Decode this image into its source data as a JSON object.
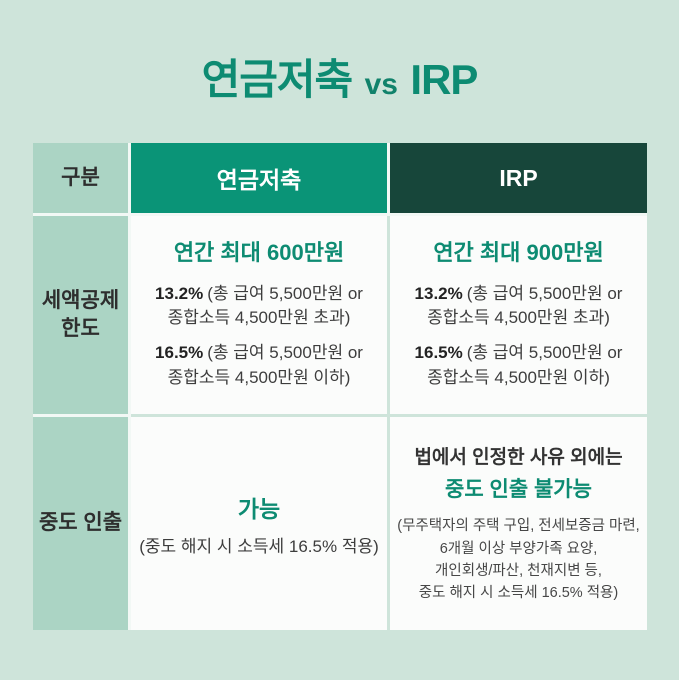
{
  "title": {
    "left": "연금저축",
    "vs": "vs",
    "right": "IRP"
  },
  "colors": {
    "background": "#cee4da",
    "mint_cell": "#abd4c4",
    "teal_header": "#0a9477",
    "dark_header": "#17463a",
    "teal_accent": "#0d8b72",
    "white_cell": "#fbfcfb",
    "body_text": "#3d3d3d"
  },
  "table": {
    "header": {
      "category": "구분",
      "pension": "연금저축",
      "irp": "IRP"
    },
    "rows": [
      {
        "label_lines": [
          "세액공제",
          "한도"
        ],
        "pension": {
          "headline": "연간 최대 600만원",
          "items": [
            {
              "pct": "13.2%",
              "desc": [
                "(총 급여 5,500만원 or",
                "종합소득 4,500만원 초과)"
              ]
            },
            {
              "pct": "16.5%",
              "desc": [
                "(총 급여 5,500만원 or",
                "종합소득 4,500만원 이하)"
              ]
            }
          ]
        },
        "irp": {
          "headline": "연간 최대 900만원",
          "items": [
            {
              "pct": "13.2%",
              "desc": [
                "(총 급여 5,500만원 or",
                "종합소득 4,500만원 초과)"
              ]
            },
            {
              "pct": "16.5%",
              "desc": [
                "(총 급여 5,500만원 or",
                "종합소득 4,500만원 이하)"
              ]
            }
          ]
        }
      },
      {
        "label_lines": [
          "중도 인출"
        ],
        "pension": {
          "headline": "가능",
          "note": "(중도 해지 시 소득세 16.5% 적용)"
        },
        "irp": {
          "pre": "법에서 인정한 사유 외에는",
          "headline": "중도 인출 불가능",
          "notes": [
            "(무주택자의 주택 구입, 전세보증금 마련,",
            "6개월 이상 부양가족 요양,",
            "개인회생/파산, 천재지변 등,",
            "중도 해지 시 소득세 16.5% 적용)"
          ]
        }
      }
    ]
  }
}
